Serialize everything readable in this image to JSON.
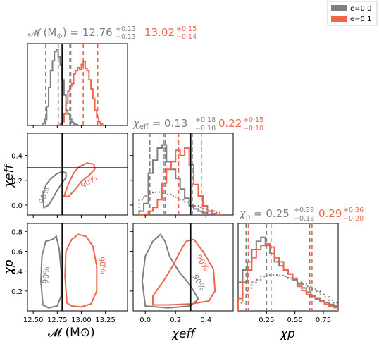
{
  "legend": {
    "entries": [
      {
        "label": "e=0.0",
        "color": "#7f7f7f"
      },
      {
        "label": "e=0.1",
        "color": "#f0644b"
      }
    ],
    "placement": "top-right"
  },
  "colors": {
    "e0": "#7f7f7f",
    "e1": "#f0644b",
    "crosshair": "#000000"
  },
  "headers": {
    "mc": {
      "param": "𝓜 (M",
      "sub": "⊙",
      "close": ") = 12.76",
      "sup_a": "+0.13",
      "sub_a": "−0.13",
      "val_b": "13.02",
      "sup_b": "+0.15",
      "sub_b": "−0.14"
    },
    "chieff": {
      "param": "χ",
      "psub": "eff",
      "eq": " = 0.13",
      "sup_a": "+0.18",
      "sub_a": "−0.10",
      "val_b": "0.22",
      "sup_b": "+0.15",
      "sub_b": "−0.10"
    },
    "chip": {
      "param": "χ",
      "psub": "p",
      "eq": " = 0.25",
      "sup_a": "+0.38",
      "sub_a": "−0.18",
      "val_b": "0.29",
      "sup_b": "+0.36",
      "sub_b": "−0.20"
    }
  },
  "axis_labels": {
    "x_mc": "𝓜 (M⊙)",
    "x_chieff": "χeff",
    "x_chip": "χp",
    "y_chieff": "χeff",
    "y_chip": "χp"
  },
  "contour_label": "90%",
  "chart_data": {
    "type": "corner",
    "parameters": [
      "Mc",
      "chi_eff",
      "chi_p"
    ],
    "series": [
      {
        "name": "e=0.0"
      },
      {
        "name": "e=0.1"
      }
    ],
    "truths": {
      "Mc": 12.8,
      "chi_eff": 0.3
    },
    "ranges": {
      "Mc": [
        12.44,
        13.48
      ],
      "chi_eff": [
        -0.08,
        0.58
      ],
      "chi_p": [
        0.0,
        0.88
      ]
    },
    "ticks": {
      "Mc": [
        12.5,
        12.75,
        13.0,
        13.25
      ],
      "Mc_labels": [
        "12.50",
        "12.75",
        "13.00",
        "13.25"
      ],
      "chi_eff_y": [
        0.0,
        0.2,
        0.4
      ],
      "chi_eff_y_labels": [
        "0.0",
        "0.2",
        "0.4"
      ],
      "chi_eff_x": [
        0.0,
        0.2,
        0.4
      ],
      "chi_eff_x_labels": [
        "0.0",
        "0.2",
        "0.4"
      ],
      "chi_p_y": [
        0.2,
        0.4,
        0.6,
        0.8
      ],
      "chi_p_y_labels": [
        "0.2",
        "0.4",
        "0.6",
        "0.8"
      ],
      "chi_p_x": [
        0.25,
        0.5,
        0.75
      ],
      "chi_p_x_labels": [
        "0.25",
        "0.50",
        "0.75"
      ]
    },
    "marginals": {
      "Mc": {
        "e0": {
          "median": 12.76,
          "lo": 12.63,
          "hi": 12.89
        },
        "e1": {
          "median": 13.02,
          "lo": 12.88,
          "hi": 13.17
        }
      },
      "chi_eff": {
        "e0": {
          "median": 0.13,
          "lo": 0.03,
          "hi": 0.31
        },
        "e1": {
          "median": 0.22,
          "lo": 0.12,
          "hi": 0.37
        }
      },
      "chi_p": {
        "e0": {
          "median": 0.25,
          "lo": 0.07,
          "hi": 0.63
        },
        "e1": {
          "median": 0.29,
          "lo": 0.09,
          "hi": 0.65
        }
      }
    },
    "histograms": {
      "Mc": {
        "bins": [
          12.6,
          12.62,
          12.64,
          12.66,
          12.68,
          12.7,
          12.72,
          12.74,
          12.76,
          12.78,
          12.8,
          12.82,
          12.84,
          12.86,
          12.88,
          12.9,
          12.92,
          12.94,
          12.96,
          12.98,
          13.0,
          13.02,
          13.04,
          13.06,
          13.08,
          13.1,
          13.12,
          13.14,
          13.16,
          13.18,
          13.2,
          13.22,
          13.24
        ],
        "e0": [
          0.03,
          0.08,
          0.25,
          0.5,
          0.72,
          0.85,
          0.97,
          1.0,
          0.9,
          0.8,
          0.6,
          0.4,
          0.2,
          0.15,
          0.08,
          0.04,
          0.02,
          0.01,
          0,
          0,
          0,
          0,
          0,
          0,
          0,
          0,
          0,
          0,
          0,
          0,
          0,
          0
        ],
        "e1": [
          0,
          0,
          0,
          0,
          0,
          0,
          0,
          0,
          0,
          0.02,
          0.05,
          0.15,
          0.3,
          0.45,
          0.52,
          0.55,
          0.68,
          0.72,
          0.76,
          0.73,
          0.8,
          0.84,
          0.75,
          0.72,
          0.6,
          0.48,
          0.35,
          0.2,
          0.1,
          0.05,
          0.02,
          0
        ]
      },
      "chi_eff": {
        "bins": [
          -0.04,
          -0.01,
          0.02,
          0.05,
          0.08,
          0.11,
          0.14,
          0.17,
          0.2,
          0.23,
          0.26,
          0.29,
          0.32,
          0.35,
          0.38,
          0.41,
          0.44,
          0.47,
          0.5
        ],
        "e0": [
          0.05,
          0.15,
          0.55,
          0.72,
          0.88,
          0.92,
          0.7,
          0.6,
          0.48,
          0.34,
          0.22,
          0.12,
          0.08,
          0.05,
          0.03,
          0.01,
          0.01,
          0
        ],
        "e1": [
          0,
          0.01,
          0.05,
          0.1,
          0.2,
          0.42,
          0.6,
          0.7,
          0.85,
          0.78,
          0.88,
          0.66,
          0.4,
          0.25,
          0.12,
          0.05,
          0.02,
          0
        ],
        "prior": [
          0.2,
          0.25,
          0.28,
          0.3,
          0.3,
          0.29,
          0.27,
          0.25,
          0.22,
          0.2,
          0.17,
          0.14,
          0.12,
          0.1,
          0.08,
          0.06,
          0.05,
          0.03
        ]
      },
      "chi_p": {
        "bins": [
          0.0,
          0.04,
          0.08,
          0.12,
          0.16,
          0.2,
          0.24,
          0.28,
          0.32,
          0.36,
          0.4,
          0.44,
          0.48,
          0.52,
          0.56,
          0.6,
          0.64,
          0.68,
          0.72,
          0.76,
          0.8,
          0.84,
          0.88
        ],
        "e0": [
          0.35,
          0.5,
          0.6,
          0.75,
          0.85,
          0.9,
          0.8,
          0.7,
          0.6,
          0.55,
          0.5,
          0.45,
          0.38,
          0.33,
          0.28,
          0.23,
          0.18,
          0.15,
          0.12,
          0.1,
          0.08,
          0.06
        ],
        "e1": [
          0.15,
          0.35,
          0.5,
          0.65,
          0.75,
          0.8,
          0.82,
          0.78,
          0.65,
          0.6,
          0.5,
          0.45,
          0.4,
          0.3,
          0.25,
          0.2,
          0.17,
          0.14,
          0.12,
          0.08,
          0.06,
          0.04
        ],
        "prior": [
          0.1,
          0.2,
          0.28,
          0.35,
          0.38,
          0.42,
          0.43,
          0.44,
          0.44,
          0.43,
          0.42,
          0.4,
          0.38,
          0.35,
          0.33,
          0.3,
          0.27,
          0.24,
          0.2,
          0.17,
          0.13,
          0.1
        ]
      }
    },
    "contours_90": {
      "Mc_chieff": {
        "e0": [
          [
            12.61,
            -0.02
          ],
          [
            12.6,
            0.08
          ],
          [
            12.63,
            0.16
          ],
          [
            12.68,
            0.21
          ],
          [
            12.74,
            0.25
          ],
          [
            12.8,
            0.27
          ],
          [
            12.84,
            0.26
          ],
          [
            12.84,
            0.22
          ],
          [
            12.8,
            0.18
          ],
          [
            12.75,
            0.12
          ],
          [
            12.7,
            0.05
          ],
          [
            12.66,
            0.0
          ],
          [
            12.61,
            -0.02
          ]
        ],
        "e1": [
          [
            12.82,
            0.07
          ],
          [
            12.86,
            0.16
          ],
          [
            12.92,
            0.26
          ],
          [
            12.98,
            0.31
          ],
          [
            13.06,
            0.34
          ],
          [
            13.13,
            0.33
          ],
          [
            13.14,
            0.29
          ],
          [
            13.08,
            0.24
          ],
          [
            13.0,
            0.19
          ],
          [
            12.94,
            0.13
          ],
          [
            12.87,
            0.07
          ],
          [
            12.82,
            0.07
          ]
        ]
      },
      "Mc_chip": {
        "e0": [
          [
            12.6,
            0.06
          ],
          [
            12.58,
            0.3
          ],
          [
            12.59,
            0.55
          ],
          [
            12.63,
            0.7
          ],
          [
            12.7,
            0.72
          ],
          [
            12.74,
            0.75
          ],
          [
            12.77,
            0.62
          ],
          [
            12.79,
            0.4
          ],
          [
            12.79,
            0.15
          ],
          [
            12.75,
            0.05
          ],
          [
            12.66,
            0.03
          ],
          [
            12.6,
            0.06
          ]
        ],
        "e1": [
          [
            12.85,
            0.08
          ],
          [
            12.83,
            0.35
          ],
          [
            12.84,
            0.6
          ],
          [
            12.9,
            0.72
          ],
          [
            12.97,
            0.77
          ],
          [
            13.05,
            0.75
          ],
          [
            13.12,
            0.65
          ],
          [
            13.16,
            0.45
          ],
          [
            13.16,
            0.2
          ],
          [
            13.1,
            0.07
          ],
          [
            13.0,
            0.04
          ],
          [
            12.9,
            0.05
          ],
          [
            12.85,
            0.08
          ]
        ]
      },
      "chieff_chip": {
        "e0": [
          [
            0.0,
            0.05
          ],
          [
            -0.02,
            0.3
          ],
          [
            0.0,
            0.55
          ],
          [
            0.05,
            0.7
          ],
          [
            0.1,
            0.77
          ],
          [
            0.13,
            0.7
          ],
          [
            0.16,
            0.55
          ],
          [
            0.22,
            0.4
          ],
          [
            0.3,
            0.25
          ],
          [
            0.35,
            0.12
          ],
          [
            0.3,
            0.05
          ],
          [
            0.15,
            0.03
          ],
          [
            0.0,
            0.05
          ]
        ],
        "e1": [
          [
            0.05,
            0.06
          ],
          [
            0.05,
            0.15
          ],
          [
            0.12,
            0.3
          ],
          [
            0.18,
            0.45
          ],
          [
            0.23,
            0.6
          ],
          [
            0.27,
            0.7
          ],
          [
            0.32,
            0.72
          ],
          [
            0.38,
            0.6
          ],
          [
            0.45,
            0.42
          ],
          [
            0.46,
            0.2
          ],
          [
            0.42,
            0.1
          ],
          [
            0.3,
            0.07
          ],
          [
            0.15,
            0.06
          ],
          [
            0.05,
            0.06
          ]
        ]
      }
    }
  }
}
